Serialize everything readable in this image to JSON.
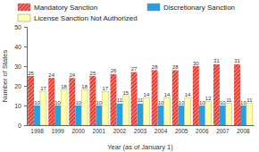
{
  "chart_data": {
    "type": "bar",
    "x_label": "Year (as of January 1)",
    "y_label": "Number of States",
    "categories": [
      "1998",
      "1999",
      "2000",
      "2001",
      "2002",
      "2003",
      "2004",
      "2005",
      "2006",
      "2007",
      "2008"
    ],
    "series": [
      {
        "name": "Mandatory Sanction",
        "color": "#e8392c",
        "values": [
          25,
          24,
          24,
          25,
          26,
          27,
          28,
          28,
          30,
          31,
          31
        ]
      },
      {
        "name": "Discretionary Sanction",
        "color": "#2a9fe0",
        "values": [
          10,
          10,
          10,
          10,
          11,
          11,
          10,
          10,
          10,
          10,
          10
        ]
      },
      {
        "name": "License Sanction Not Authorized",
        "color": "#ffffb0",
        "values": [
          17,
          18,
          18,
          17,
          15,
          14,
          14,
          14,
          12,
          11,
          11
        ]
      }
    ],
    "ylim": [
      0,
      50
    ],
    "yticks": [
      0,
      10,
      20,
      30,
      40,
      50
    ],
    "grid": false,
    "legend": "top",
    "data_labels": true
  }
}
